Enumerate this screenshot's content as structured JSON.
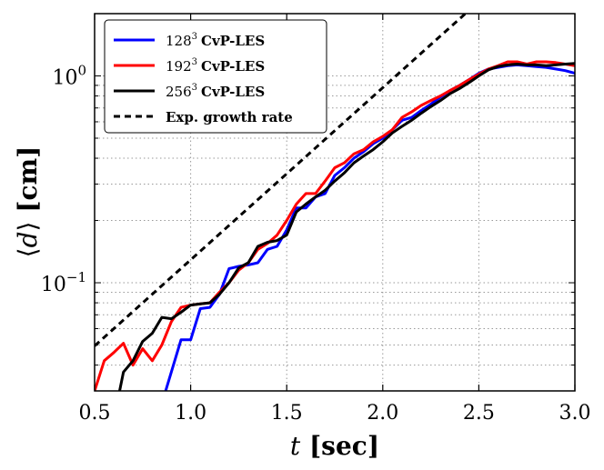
{
  "chart_data": {
    "type": "line",
    "title": "",
    "xlabel": {
      "var": "t",
      "unit": "[sec]"
    },
    "ylabel": {
      "left": "⟨",
      "var": "d",
      "right": "⟩",
      "unit": "[cm]"
    },
    "xscale": "linear",
    "yscale": "log",
    "xlim": [
      0.5,
      3.0
    ],
    "ylim": [
      0.03,
      2.0
    ],
    "xticks": [
      0.5,
      1.0,
      1.5,
      2.0,
      2.5,
      3.0
    ],
    "xtick_labels": [
      "0.5",
      "1.0",
      "1.5",
      "2.0",
      "2.5",
      "3.0"
    ],
    "yticks": [
      {
        "value": 0.1,
        "base": "10",
        "exp": "−1"
      },
      {
        "value": 1.0,
        "base": "10",
        "exp": "0"
      }
    ],
    "grid": true,
    "legend_position": "top-left",
    "series": [
      {
        "name": "128³ CvP-LES",
        "legend": {
          "base": "128",
          "sup": "3",
          "suffix": "CvP-LES"
        },
        "color": "#0000ff",
        "style": "solid",
        "x": [
          0.87,
          0.95,
          1.0,
          1.05,
          1.1,
          1.15,
          1.2,
          1.25,
          1.3,
          1.35,
          1.4,
          1.45,
          1.5,
          1.55,
          1.6,
          1.65,
          1.7,
          1.75,
          1.8,
          1.85,
          1.9,
          1.95,
          2.0,
          2.05,
          2.1,
          2.15,
          2.2,
          2.25,
          2.3,
          2.35,
          2.4,
          2.45,
          2.5,
          2.55,
          2.6,
          2.65,
          2.7,
          2.75,
          2.8,
          2.85,
          2.9,
          2.95,
          3.0
        ],
        "y": [
          0.03,
          0.053,
          0.053,
          0.075,
          0.076,
          0.088,
          0.117,
          0.12,
          0.122,
          0.125,
          0.145,
          0.15,
          0.18,
          0.23,
          0.23,
          0.26,
          0.27,
          0.33,
          0.36,
          0.4,
          0.43,
          0.47,
          0.5,
          0.55,
          0.61,
          0.63,
          0.68,
          0.73,
          0.79,
          0.85,
          0.9,
          0.96,
          1.03,
          1.08,
          1.1,
          1.12,
          1.13,
          1.12,
          1.11,
          1.1,
          1.08,
          1.06,
          1.03
        ]
      },
      {
        "name": "192³ CvP-LES",
        "legend": {
          "base": "192",
          "sup": "3",
          "suffix": "CvP-LES"
        },
        "color": "#ff0000",
        "style": "solid",
        "x": [
          0.5,
          0.55,
          0.6,
          0.65,
          0.7,
          0.75,
          0.8,
          0.85,
          0.9,
          0.95,
          1.0,
          1.05,
          1.1,
          1.15,
          1.2,
          1.25,
          1.3,
          1.35,
          1.4,
          1.45,
          1.5,
          1.55,
          1.6,
          1.65,
          1.7,
          1.75,
          1.8,
          1.85,
          1.9,
          1.95,
          2.0,
          2.05,
          2.1,
          2.15,
          2.2,
          2.25,
          2.3,
          2.35,
          2.4,
          2.45,
          2.5,
          2.55,
          2.6,
          2.65,
          2.7,
          2.75,
          2.8,
          2.85,
          2.9,
          2.95,
          3.0
        ],
        "y": [
          0.03,
          0.042,
          0.046,
          0.051,
          0.04,
          0.048,
          0.042,
          0.05,
          0.065,
          0.076,
          0.078,
          0.079,
          0.08,
          0.09,
          0.1,
          0.115,
          0.125,
          0.145,
          0.155,
          0.17,
          0.2,
          0.24,
          0.27,
          0.27,
          0.31,
          0.36,
          0.38,
          0.42,
          0.44,
          0.48,
          0.51,
          0.55,
          0.63,
          0.67,
          0.72,
          0.76,
          0.8,
          0.85,
          0.9,
          0.96,
          1.02,
          1.08,
          1.12,
          1.17,
          1.17,
          1.14,
          1.17,
          1.17,
          1.16,
          1.14,
          1.12
        ]
      },
      {
        "name": "256³ CvP-LES",
        "legend": {
          "base": "256",
          "sup": "3",
          "suffix": "CvP-LES"
        },
        "color": "#000000",
        "style": "solid",
        "x": [
          0.63,
          0.65,
          0.7,
          0.75,
          0.8,
          0.85,
          0.9,
          0.95,
          1.0,
          1.05,
          1.1,
          1.15,
          1.2,
          1.25,
          1.3,
          1.35,
          1.4,
          1.45,
          1.5,
          1.55,
          1.6,
          1.65,
          1.7,
          1.75,
          1.8,
          1.85,
          1.9,
          1.95,
          2.0,
          2.05,
          2.1,
          2.15,
          2.2,
          2.25,
          2.3,
          2.35,
          2.4,
          2.45,
          2.5,
          2.55,
          2.6,
          2.65,
          2.7,
          2.75,
          2.8,
          2.85,
          2.9,
          2.95,
          3.0
        ],
        "y": [
          0.03,
          0.037,
          0.042,
          0.052,
          0.057,
          0.068,
          0.067,
          0.072,
          0.078,
          0.079,
          0.08,
          0.088,
          0.1,
          0.118,
          0.125,
          0.15,
          0.157,
          0.16,
          0.17,
          0.22,
          0.24,
          0.26,
          0.28,
          0.31,
          0.34,
          0.38,
          0.41,
          0.44,
          0.48,
          0.53,
          0.57,
          0.61,
          0.66,
          0.71,
          0.76,
          0.82,
          0.87,
          0.93,
          1.0,
          1.07,
          1.11,
          1.13,
          1.14,
          1.13,
          1.13,
          1.12,
          1.13,
          1.14,
          1.15
        ]
      },
      {
        "name": "Exp. growth rate",
        "legend": {
          "base": "Exp. growth rate",
          "sup": "",
          "suffix": ""
        },
        "color": "#000000",
        "style": "dashed",
        "x": [
          0.5,
          2.43
        ],
        "y": [
          0.0495,
          2.0
        ]
      }
    ]
  }
}
